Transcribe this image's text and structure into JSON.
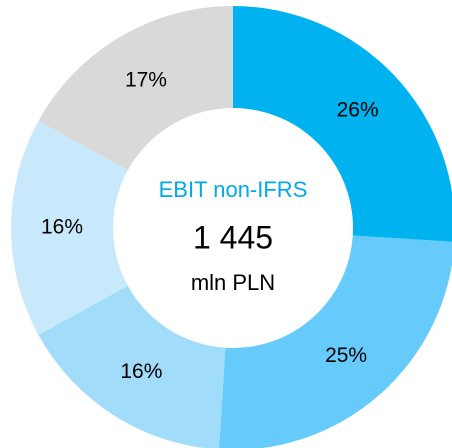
{
  "chart_data": {
    "type": "donut",
    "center_title": "EBIT non-IFRS",
    "center_value": "1 445",
    "center_unit": "mln PLN",
    "values": [
      26,
      25,
      16,
      16,
      17
    ],
    "value_labels": [
      "26%",
      "25%",
      "16%",
      "16%",
      "17%"
    ],
    "colors": [
      "#00b3f0",
      "#66cbfb",
      "#a2dcfb",
      "#c8e9fc",
      "#d9d9d9"
    ],
    "center_title_color": "#00a9ea"
  }
}
